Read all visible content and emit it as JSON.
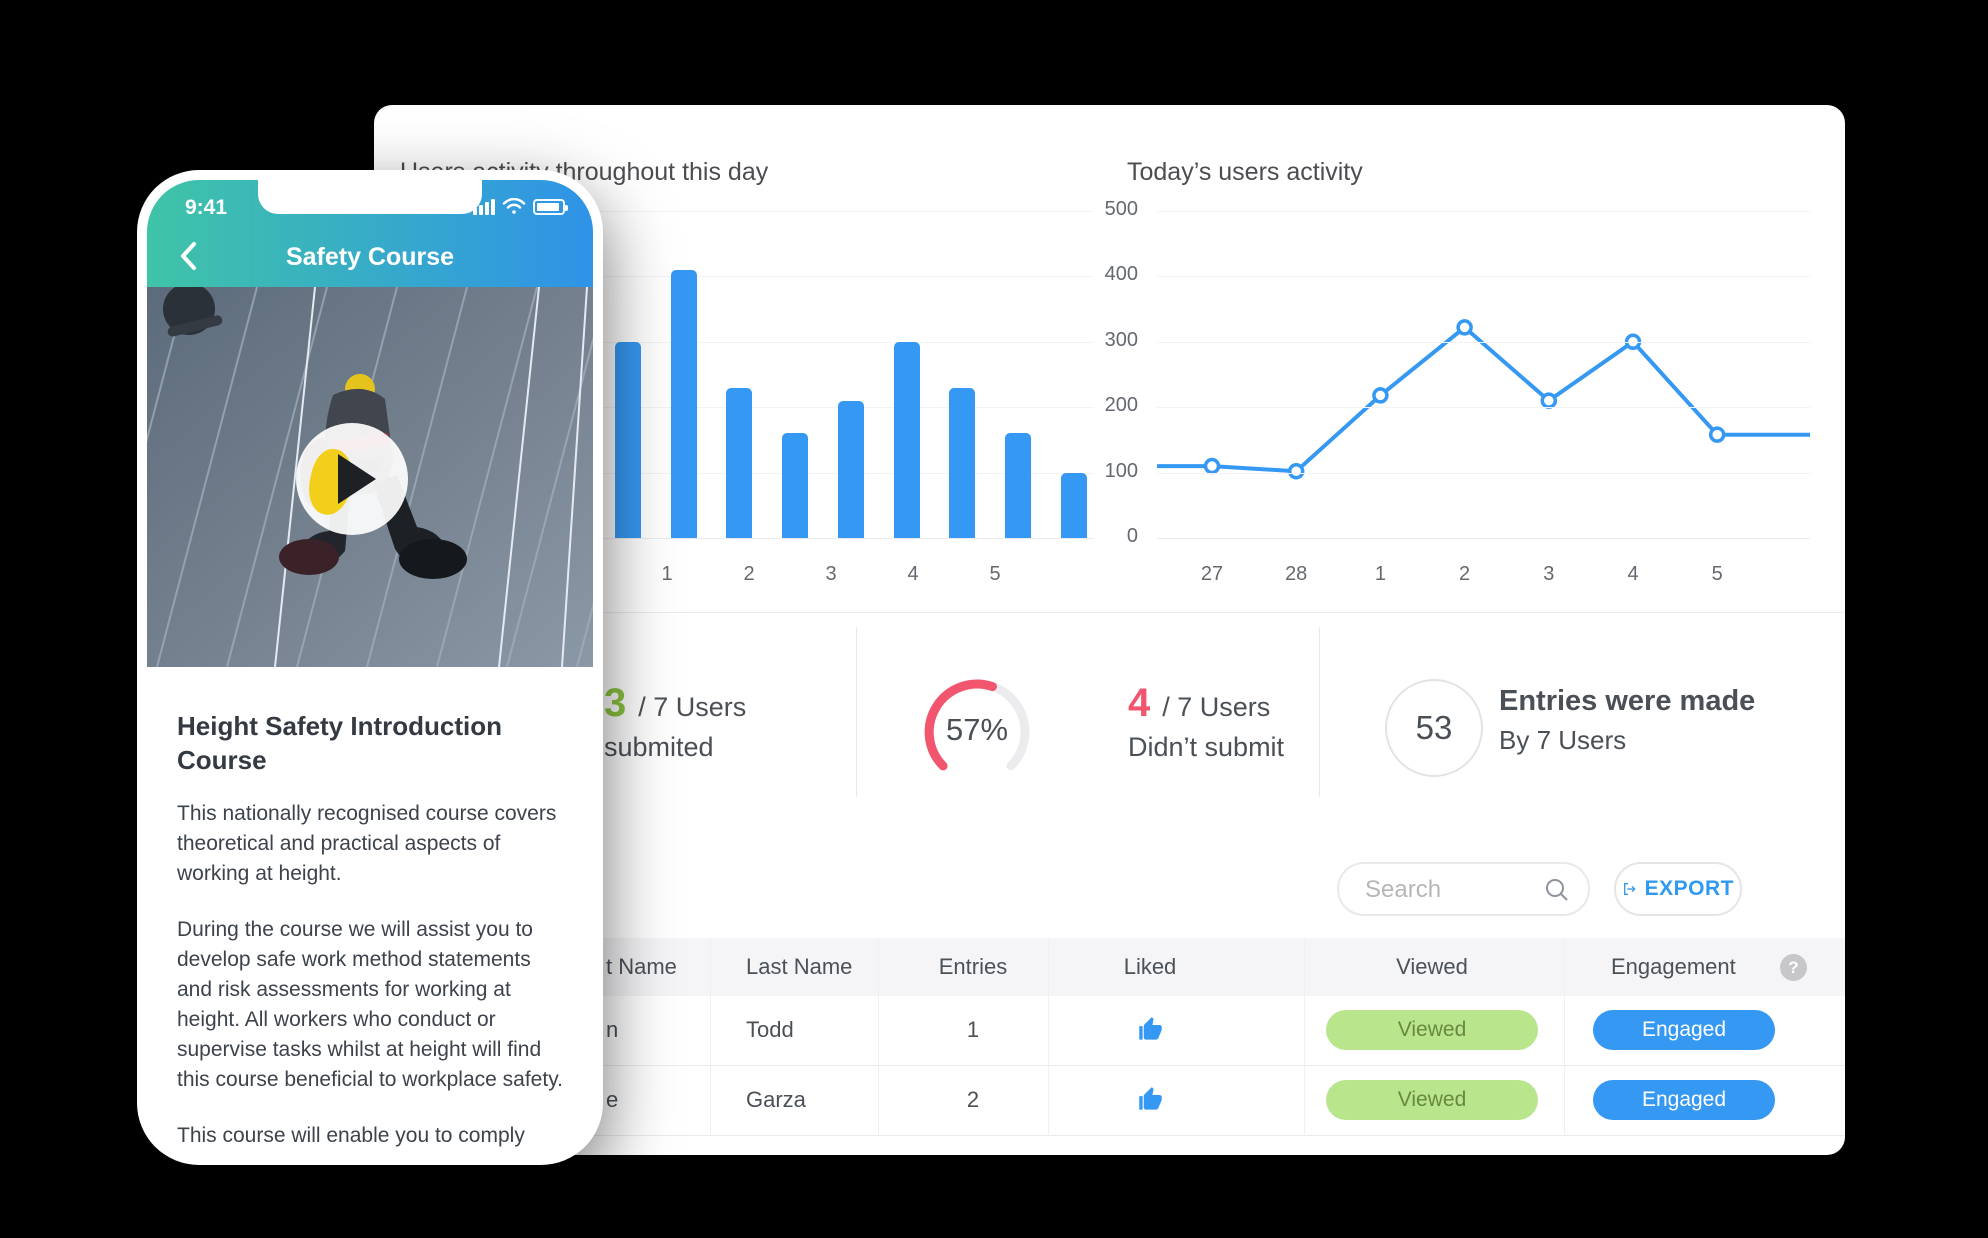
{
  "colors": {
    "accent_blue": "#3598f2",
    "green": "#8bc53f",
    "pink": "#f2566e",
    "gauge_track": "#ececee",
    "badge_green_bg": "#b9e58d",
    "badge_green_text": "#68883f",
    "text_dark": "#4a5056"
  },
  "phone": {
    "time": "9:41",
    "nav_title": "Safety Course",
    "course_title": "Height Safety Introduction Course",
    "paragraphs": [
      "This nationally recognised course covers theoretical and practical aspects of working at height.",
      "During the course we will assist you to develop safe work method statements and risk assessments for working at height. All workers who conduct or supervise tasks whilst at height will find this course beneficial to workplace safety.",
      "This course will enable you to comply with current WHS legislation with successful trainees receiving"
    ]
  },
  "dashboard": {
    "bar_chart": {
      "type": "bar",
      "title": "Users activity throughout this day",
      "x_labels": [
        "1",
        "2",
        "3",
        "4",
        "5"
      ],
      "values": [
        300,
        410,
        230,
        160,
        210,
        300,
        230,
        160,
        100
      ],
      "ylim": [
        0,
        500
      ],
      "grid": "on"
    },
    "line_chart": {
      "type": "line",
      "title": "Today’s users activity",
      "x_labels": [
        "27",
        "28",
        "1",
        "2",
        "3",
        "4",
        "5"
      ],
      "values": [
        110,
        102,
        218,
        322,
        210,
        300,
        158
      ],
      "y_ticks": [
        "500",
        "400",
        "300",
        "200",
        "100",
        "0"
      ],
      "ylim": [
        0,
        500
      ],
      "grid": "on"
    },
    "stats": {
      "submitted": {
        "value": "3",
        "rest": "/ 7 Users",
        "line2": "submited"
      },
      "gauge": {
        "percent": 57,
        "label": "57%"
      },
      "not_submitted": {
        "value": "4",
        "rest": "/ 7 Users",
        "line2": "Didn’t submit"
      },
      "entries": {
        "value": "53",
        "line1": "Entries were made",
        "line2": "By 7 Users"
      }
    },
    "toolbar": {
      "search_placeholder": "Search",
      "export_label": "EXPORT"
    },
    "table": {
      "help_label": "?",
      "headers": {
        "first_name": "t Name",
        "last_name": "Last Name",
        "entries": "Entries",
        "liked": "Liked",
        "viewed": "Viewed",
        "engagement": "Engagement"
      },
      "rows": [
        {
          "first_name": "n",
          "last_name": "Todd",
          "entries": "1",
          "viewed": "Viewed",
          "engagement": "Engaged"
        },
        {
          "first_name": "e",
          "last_name": "Garza",
          "entries": "2",
          "viewed": "Viewed",
          "engagement": "Engaged"
        }
      ]
    }
  }
}
